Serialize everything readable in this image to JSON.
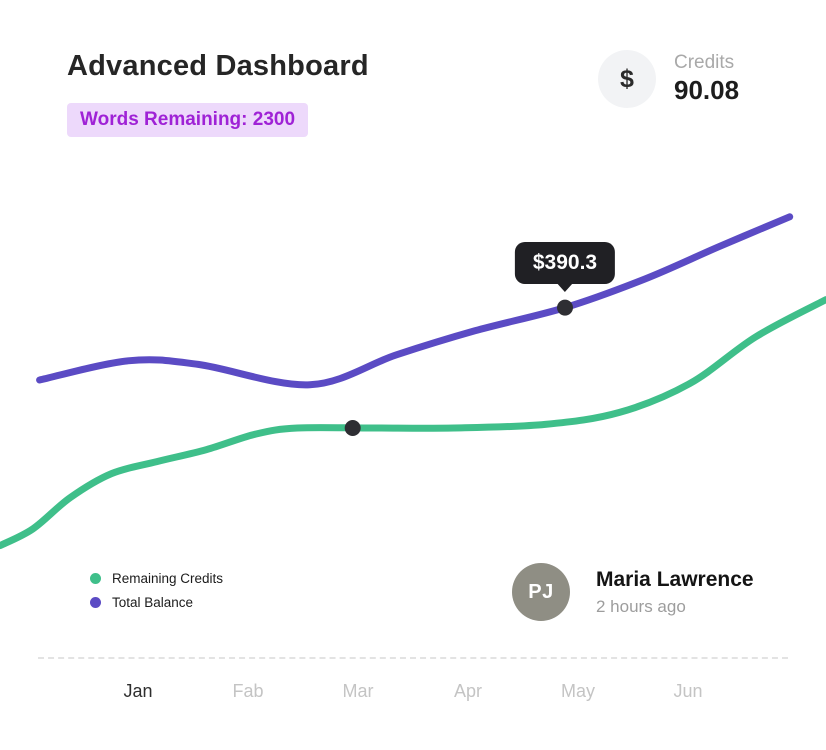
{
  "header": {
    "title": "Advanced Dashboard",
    "badge": "Words Remaining: 2300",
    "credits": {
      "icon": "$",
      "label": "Credits",
      "value": "90.08"
    }
  },
  "user": {
    "avatar_initials": "PJ",
    "name": "Maria Lawrence",
    "time": "2 hours ago"
  },
  "colors": {
    "remaining_credits_line": "#3fbf8a",
    "total_balance_line": "#5b4bc4",
    "marker_dot": "#2e2e33",
    "tooltip_bg": "#202024",
    "badge_bg": "#edd9fb",
    "badge_text": "#9f22d6"
  },
  "chart_data": {
    "type": "line",
    "title": "",
    "xlabel": "",
    "ylabel": "",
    "x_axis_labels": [
      "Jan",
      "Fab",
      "Mar",
      "Apr",
      "May",
      "Jun"
    ],
    "active_month": "Jan",
    "ylim": [
      180,
      480
    ],
    "grid": false,
    "legend_position": "bottom-left",
    "series": [
      {
        "name": "Remaining Credits",
        "color": "#3fbf8a",
        "points": [
          [
            0.0,
            192
          ],
          [
            0.04,
            206
          ],
          [
            0.085,
            232
          ],
          [
            0.135,
            252
          ],
          [
            0.19,
            262
          ],
          [
            0.25,
            272
          ],
          [
            0.31,
            285
          ],
          [
            0.36,
            290
          ],
          [
            0.45,
            290
          ],
          [
            0.55,
            290
          ],
          [
            0.66,
            293
          ],
          [
            0.75,
            303
          ],
          [
            0.835,
            327
          ],
          [
            0.915,
            366
          ],
          [
            1.0,
            397
          ]
        ],
        "marker": {
          "x": 0.427,
          "value": 290
        }
      },
      {
        "name": "Total Balance",
        "color": "#5b4bc4",
        "points": [
          [
            0.048,
            330
          ],
          [
            0.155,
            346
          ],
          [
            0.24,
            343
          ],
          [
            0.375,
            326
          ],
          [
            0.48,
            351
          ],
          [
            0.575,
            371
          ],
          [
            0.684,
            390.3
          ],
          [
            0.78,
            414
          ],
          [
            0.87,
            441
          ],
          [
            0.956,
            466
          ]
        ],
        "marker": {
          "x": 0.684,
          "value": 390.3
        },
        "tooltip": "$390.3"
      }
    ]
  }
}
